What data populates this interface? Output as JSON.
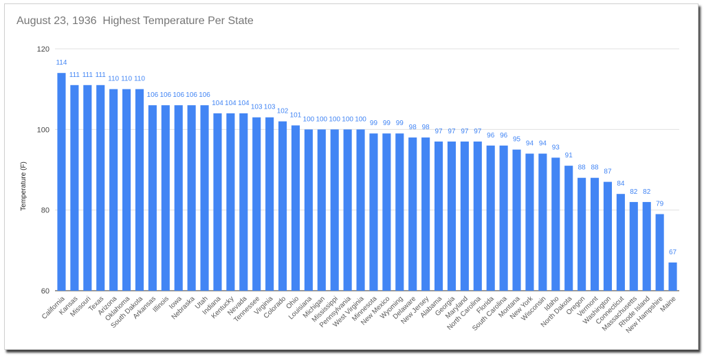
{
  "chart_data": {
    "type": "bar",
    "title": "August 23, 1936  Highest Temperature Per State",
    "xlabel": "",
    "ylabel": "Temperature (F)",
    "ylim": [
      60,
      120
    ],
    "yticks": [
      "60",
      "80",
      "100",
      "120"
    ],
    "grid": true,
    "legend": "none",
    "bar_color": "#4285f4",
    "categories": [
      "California",
      "Kansas",
      "Missouri",
      "Texas",
      "Arizona",
      "Oklahoma",
      "South Dakota",
      "Arkansas",
      "Illinois",
      "Iowa",
      "Nebraska",
      "Utah",
      "Indiana",
      "Kentucky",
      "Nevada",
      "Tennessee",
      "Virginia",
      "Colorado",
      "Ohio",
      "Louisiana",
      "Michigan",
      "Mississippi",
      "Pennsylvania",
      "West Virginia",
      "Minnesota",
      "New Mexico",
      "Wyoming",
      "Delaware",
      "New Jersey",
      "Alabama",
      "Georgia",
      "Maryland",
      "North Carolina",
      "Florida",
      "South Carolina",
      "Montana",
      "New York",
      "Wisconsin",
      "Idaho",
      "North Dakota",
      "Oregon",
      "Vermont",
      "Washington",
      "Connecticut",
      "Massachusetts",
      "Rhode Island",
      "New Hampshire",
      "Maine"
    ],
    "values": [
      114,
      111,
      111,
      111,
      110,
      110,
      110,
      106,
      106,
      106,
      106,
      106,
      104,
      104,
      104,
      103,
      103,
      102,
      101,
      100,
      100,
      100,
      100,
      100,
      99,
      99,
      99,
      98,
      98,
      97,
      97,
      97,
      97,
      96,
      96,
      95,
      94,
      94,
      93,
      91,
      88,
      88,
      87,
      84,
      82,
      82,
      79,
      67
    ]
  }
}
